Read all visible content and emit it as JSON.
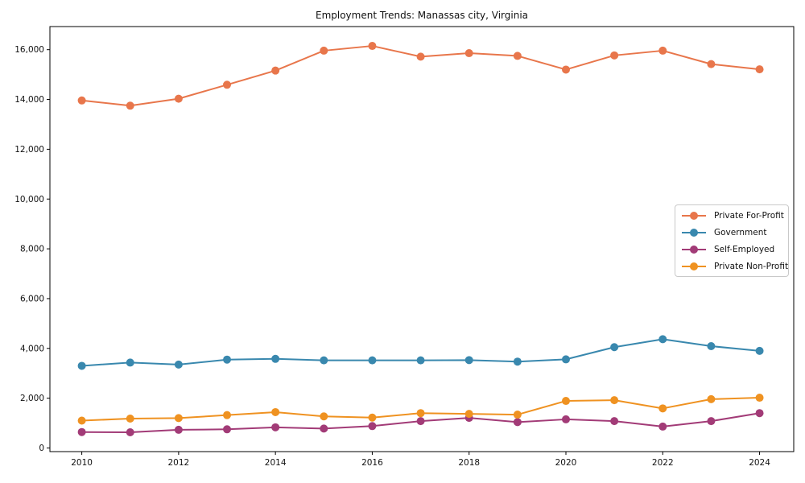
{
  "title": "Employment Trends: Manassas city, Virginia",
  "chart_data": {
    "type": "line",
    "title": "Employment Trends: Manassas city, Virginia",
    "xlabel": "",
    "ylabel": "",
    "grid": false,
    "legend_position": "center right",
    "x": [
      2010,
      2011,
      2012,
      2013,
      2014,
      2015,
      2016,
      2017,
      2018,
      2019,
      2020,
      2021,
      2022,
      2023,
      2024
    ],
    "series": [
      {
        "name": "Private For-Profit",
        "color": "#E8764B",
        "values": [
          13960,
          13750,
          14030,
          14590,
          15160,
          15960,
          16150,
          15720,
          15860,
          15750,
          15200,
          15770,
          15960,
          15420,
          15210
        ]
      },
      {
        "name": "Government",
        "color": "#3988AE",
        "values": [
          3300,
          3430,
          3350,
          3550,
          3580,
          3520,
          3520,
          3520,
          3530,
          3470,
          3560,
          4050,
          4370,
          4090,
          3900
        ]
      },
      {
        "name": "Self-Employed",
        "color": "#A23B77",
        "values": [
          640,
          630,
          730,
          750,
          830,
          780,
          880,
          1080,
          1210,
          1040,
          1150,
          1080,
          860,
          1080,
          1400
        ]
      },
      {
        "name": "Private Non-Profit",
        "color": "#EF9221",
        "values": [
          1100,
          1180,
          1200,
          1320,
          1440,
          1270,
          1220,
          1400,
          1370,
          1340,
          1890,
          1920,
          1590,
          1960,
          2020
        ]
      }
    ],
    "xticks": [
      2010,
      2012,
      2014,
      2016,
      2018,
      2020,
      2022,
      2024
    ],
    "yticks": [
      0,
      2000,
      4000,
      6000,
      8000,
      10000,
      12000,
      14000,
      16000
    ],
    "ytick_labels": [
      "0",
      "2,000",
      "4,000",
      "6,000",
      "8,000",
      "10,000",
      "12,000",
      "14,000",
      "16,000"
    ],
    "ylim": [
      0,
      16000
    ],
    "xlim": [
      2009.3,
      2024.7
    ]
  }
}
